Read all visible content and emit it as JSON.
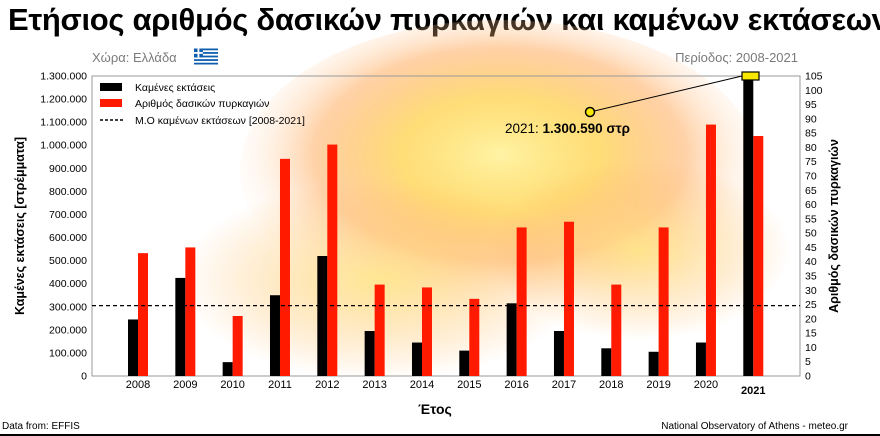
{
  "header": {
    "title": "Ετήσιος αριθμός δασικών πυρκαγιών και καμένων εκτάσεων",
    "country_label": "Χώρα: Ελλάδα",
    "period_label": "Περίοδος: 2008-2021"
  },
  "footer": {
    "source": "Data from: EFFIS",
    "credit": "National Observatory of Athens - meteo.gr"
  },
  "chart_data": {
    "type": "bar",
    "categories": [
      "2008",
      "2009",
      "2010",
      "2011",
      "2012",
      "2013",
      "2014",
      "2015",
      "2016",
      "2017",
      "2018",
      "2019",
      "2020",
      "2021"
    ],
    "xlabel": "Έτος",
    "ylabel_left": "Καμένες εκτάσεις [στρέμματα]",
    "ylabel_right": "Αριθμός δασικών πυρκαγιών",
    "ylim_left": [
      0,
      1300000
    ],
    "ylim_right": [
      0,
      105
    ],
    "yticks_left": [
      "0",
      "100.000",
      "200.000",
      "300.000",
      "400.000",
      "500.000",
      "600.000",
      "700.000",
      "800.000",
      "900.000",
      "1.000.000",
      "1.100.000",
      "1.200.000",
      "1.300.000"
    ],
    "yticks_right": [
      "0",
      "5",
      "10",
      "15",
      "20",
      "25",
      "30",
      "35",
      "40",
      "45",
      "50",
      "55",
      "60",
      "65",
      "70",
      "75",
      "80",
      "85",
      "90",
      "95",
      "100",
      "105"
    ],
    "series": [
      {
        "name": "Καμένες εκτάσεις",
        "axis": "left",
        "color": "#000000",
        "values": [
          245000,
          425000,
          60000,
          350000,
          520000,
          195000,
          145000,
          110000,
          315000,
          195000,
          120000,
          105000,
          145000,
          1300590
        ]
      },
      {
        "name": "Αριθμός δασικών πυρκαγιών",
        "axis": "right",
        "color": "#ff1a00",
        "values": [
          43,
          45,
          21,
          76,
          81,
          32,
          31,
          27,
          52,
          54,
          32,
          52,
          88,
          84
        ]
      }
    ],
    "reference_line": {
      "name": "Μ.Ο καμένων εκτάσεων [2008-2021]",
      "axis": "left",
      "value": 305000,
      "style": "dashed"
    },
    "highlight_category": "2021",
    "annotation": {
      "prefix": "2021: ",
      "value_text": "1.300.590 στρ",
      "target_category": "2021",
      "target_value": 1300590
    },
    "legend_position": "top-left",
    "grid": false
  }
}
